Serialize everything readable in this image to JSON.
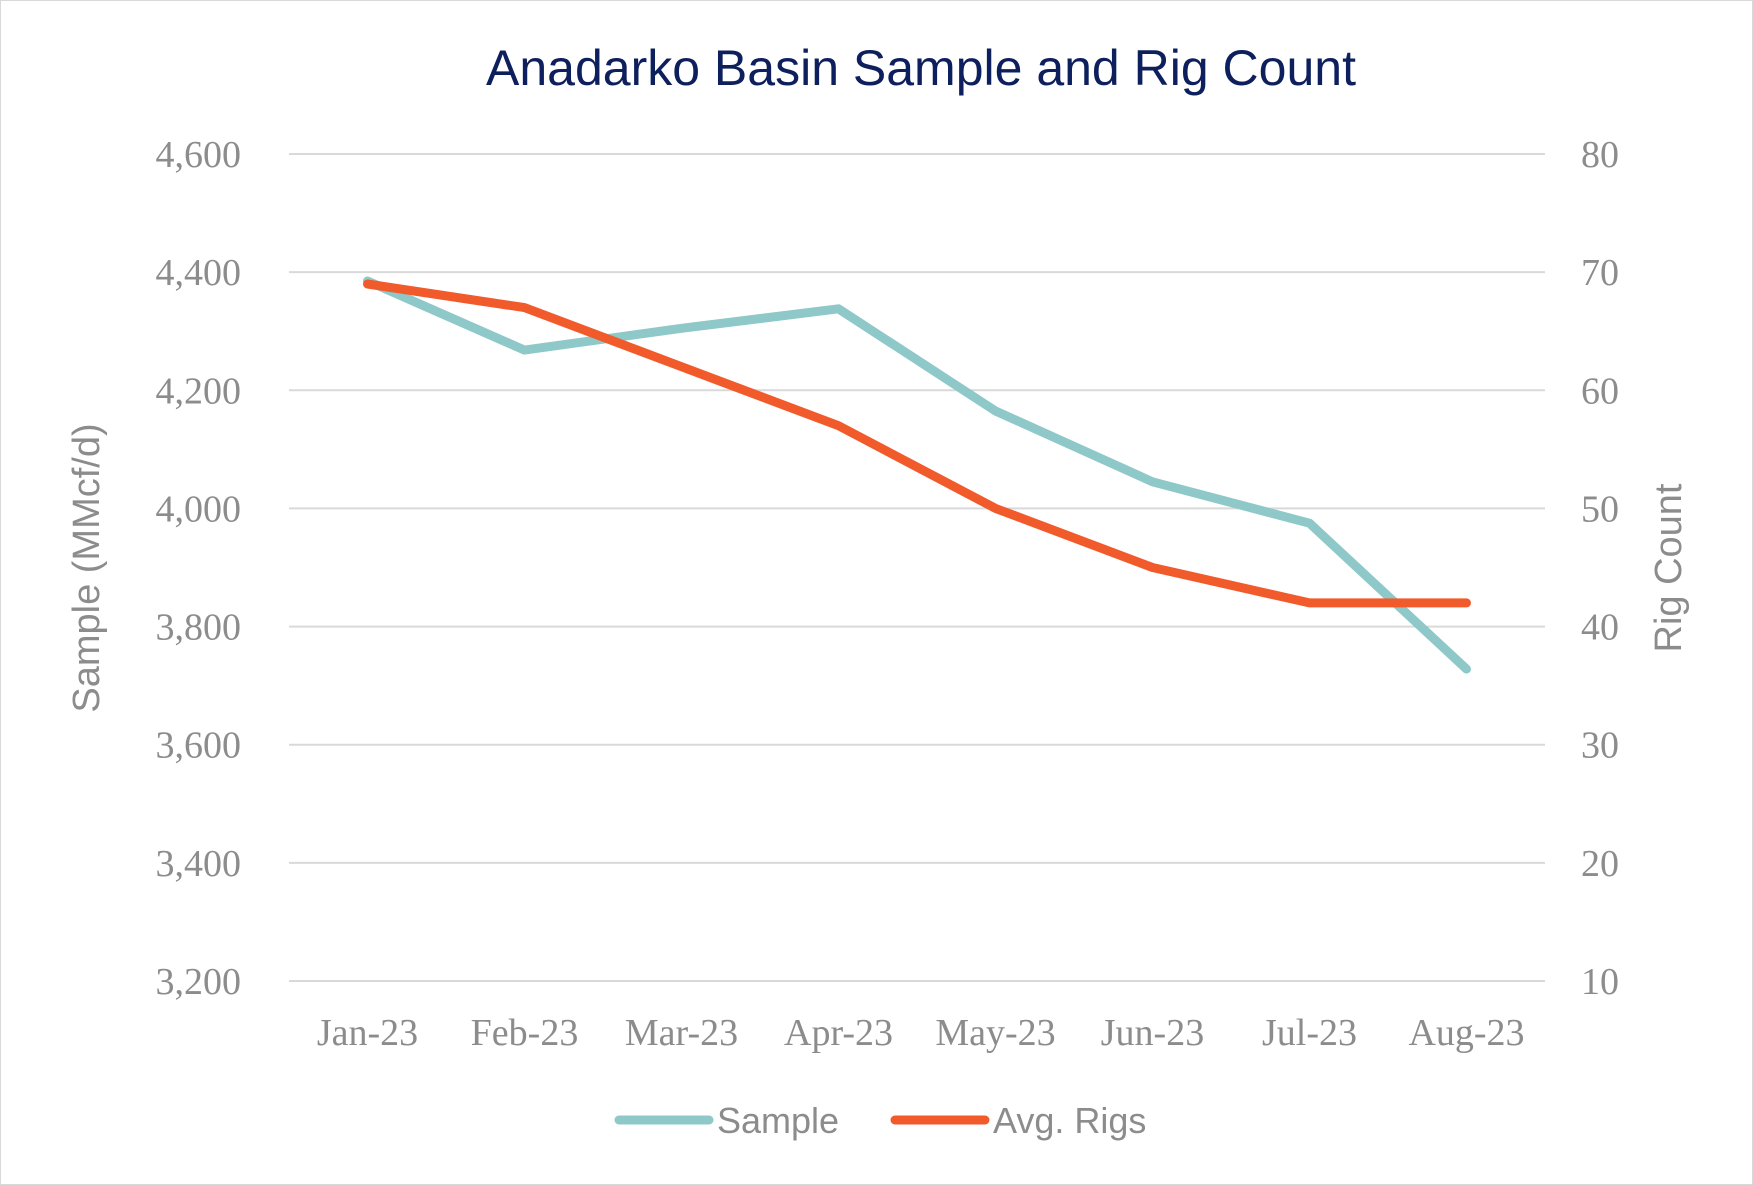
{
  "chart_data": {
    "type": "line",
    "title": "Anadarko Basin Sample and Rig Count",
    "categories": [
      "Jan-23",
      "Feb-23",
      "Mar-23",
      "Apr-23",
      "May-23",
      "Jun-23",
      "Jul-23",
      "Aug-23"
    ],
    "series": [
      {
        "name": "Sample",
        "axis": "left",
        "color": "#8ec8c8",
        "values": [
          4385,
          4268,
          4305,
          4338,
          4165,
          4045,
          3975,
          3728
        ]
      },
      {
        "name": "Avg. Rigs",
        "axis": "right",
        "color": "#f15a2b",
        "values": [
          69,
          67,
          62,
          57,
          50,
          45,
          42,
          42
        ]
      }
    ],
    "y_left": {
      "label": "Sample (MMcf/d)",
      "lim": [
        3200,
        4600
      ],
      "ticks": [
        "3,200",
        "3,400",
        "3,600",
        "3,800",
        "4,000",
        "4,200",
        "4,400",
        "4,600"
      ]
    },
    "y_right": {
      "label": "Rig Count",
      "lim": [
        10,
        80
      ],
      "ticks": [
        "10",
        "20",
        "30",
        "40",
        "50",
        "60",
        "70",
        "80"
      ]
    },
    "grid": true,
    "legend": "bottom-center"
  }
}
